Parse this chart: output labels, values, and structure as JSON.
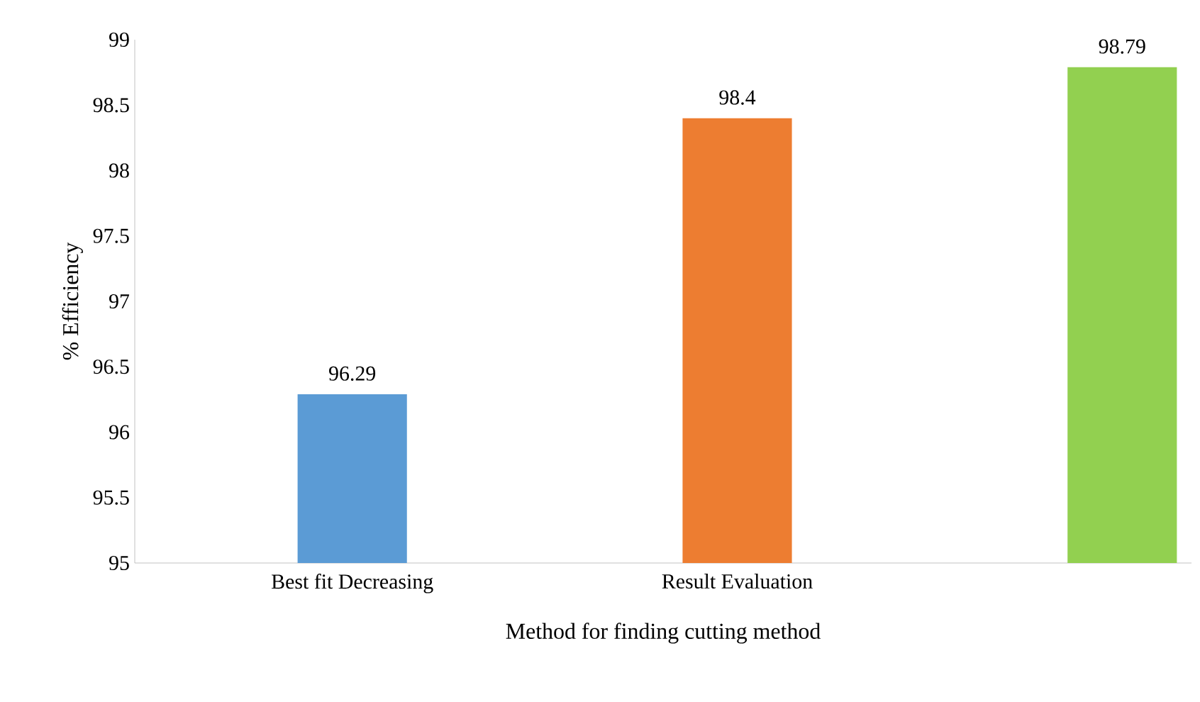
{
  "chart_data": {
    "type": "bar",
    "categories": [
      "Best fit Decreasing",
      "Result Evaluation",
      null
    ],
    "values": [
      96.29,
      98.4,
      98.79
    ],
    "colors": [
      "#5b9bd5",
      "#ed7d31",
      "#92d050"
    ],
    "xlabel": "Method for finding cutting method",
    "ylabel": "% Efficiency",
    "ylim": [
      95,
      99
    ],
    "yticks": [
      95,
      95.5,
      96,
      96.5,
      97,
      97.5,
      98,
      98.5,
      99
    ],
    "data_labels": true
  }
}
